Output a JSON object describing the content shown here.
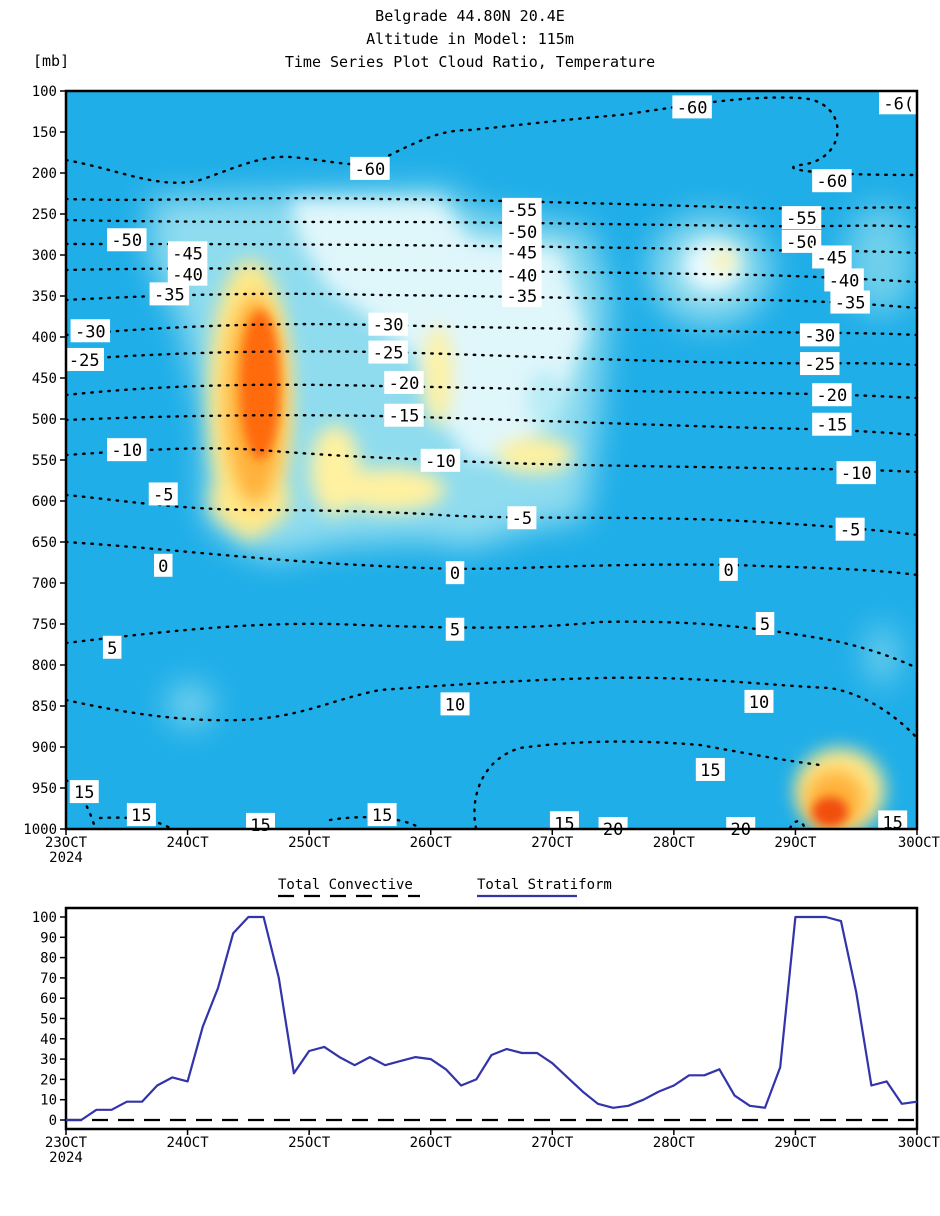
{
  "header": {
    "line1": "Belgrade  44.80N 20.4E",
    "line2": "Altitude in Model: 115m",
    "line3": "Time Series Plot Cloud Ratio, Temperature",
    "unit": "[mb]"
  },
  "chart_data": [
    {
      "type": "heatmap",
      "title": "Time Series Plot Cloud Ratio, Temperature",
      "ylabel": "[mb]",
      "y_ticks": [
        100,
        150,
        200,
        250,
        300,
        350,
        400,
        450,
        500,
        550,
        600,
        650,
        700,
        750,
        800,
        850,
        900,
        950,
        1000
      ],
      "ylim": [
        1000,
        100
      ],
      "x_ticks": [
        "23OCT",
        "24OCT",
        "25OCT",
        "26OCT",
        "27OCT",
        "28OCT",
        "29OCT",
        "30OCT"
      ],
      "x_year": "2024",
      "xlim": [
        23,
        30
      ],
      "contour_labels": [
        {
          "text": "-60",
          "day": 28.15,
          "p": 120
        },
        {
          "text": "-6(",
          "day": 29.85,
          "p": 115
        },
        {
          "text": "-60",
          "day": 25.5,
          "p": 195
        },
        {
          "text": "-60",
          "day": 29.3,
          "p": 210
        },
        {
          "text": "-55",
          "day": 26.75,
          "p": 245
        },
        {
          "text": "-55",
          "day": 29.05,
          "p": 255
        },
        {
          "text": "-50",
          "day": 26.75,
          "p": 272
        },
        {
          "text": "-50",
          "day": 29.05,
          "p": 284
        },
        {
          "text": "-50",
          "day": 23.5,
          "p": 282
        },
        {
          "text": "-45",
          "day": 26.75,
          "p": 297
        },
        {
          "text": "-45",
          "day": 29.3,
          "p": 303
        },
        {
          "text": "-45",
          "day": 24.0,
          "p": 298
        },
        {
          "text": "-40",
          "day": 26.75,
          "p": 325
        },
        {
          "text": "-40",
          "day": 29.4,
          "p": 331
        },
        {
          "text": "-40",
          "day": 24.0,
          "p": 324
        },
        {
          "text": "-35",
          "day": 26.75,
          "p": 350
        },
        {
          "text": "-35",
          "day": 29.45,
          "p": 358
        },
        {
          "text": "-35",
          "day": 23.85,
          "p": 348
        },
        {
          "text": "-30",
          "day": 25.65,
          "p": 385
        },
        {
          "text": "-30",
          "day": 29.2,
          "p": 398
        },
        {
          "text": "-30",
          "day": 23.2,
          "p": 393
        },
        {
          "text": "-25",
          "day": 25.65,
          "p": 419
        },
        {
          "text": "-25",
          "day": 29.2,
          "p": 433
        },
        {
          "text": "-25",
          "day": 23.15,
          "p": 428
        },
        {
          "text": "-20",
          "day": 25.78,
          "p": 456
        },
        {
          "text": "-20",
          "day": 29.3,
          "p": 471
        },
        {
          "text": "-15",
          "day": 25.78,
          "p": 496
        },
        {
          "text": "-15",
          "day": 29.3,
          "p": 507
        },
        {
          "text": "-10",
          "day": 23.5,
          "p": 538
        },
        {
          "text": "-10",
          "day": 26.08,
          "p": 551
        },
        {
          "text": "-10",
          "day": 29.5,
          "p": 566
        },
        {
          "text": "-5",
          "day": 23.8,
          "p": 592
        },
        {
          "text": "-5",
          "day": 26.75,
          "p": 621
        },
        {
          "text": "-5",
          "day": 29.45,
          "p": 635
        },
        {
          "text": "0",
          "day": 23.8,
          "p": 679
        },
        {
          "text": "0",
          "day": 26.2,
          "p": 688
        },
        {
          "text": "0",
          "day": 28.45,
          "p": 684
        },
        {
          "text": "5",
          "day": 23.38,
          "p": 779
        },
        {
          "text": "5",
          "day": 26.2,
          "p": 757
        },
        {
          "text": "5",
          "day": 28.75,
          "p": 750
        },
        {
          "text": "10",
          "day": 26.2,
          "p": 848
        },
        {
          "text": "10",
          "day": 28.7,
          "p": 845
        },
        {
          "text": "15",
          "day": 23.15,
          "p": 955
        },
        {
          "text": "15",
          "day": 23.62,
          "p": 983
        },
        {
          "text": "15",
          "day": 24.6,
          "p": 995
        },
        {
          "text": "15",
          "day": 25.6,
          "p": 983
        },
        {
          "text": "15",
          "day": 27.1,
          "p": 993
        },
        {
          "text": "15",
          "day": 28.3,
          "p": 928
        },
        {
          "text": "15",
          "day": 29.8,
          "p": 992
        },
        {
          "text": "20",
          "day": 27.5,
          "p": 1000
        },
        {
          "text": "20",
          "day": 28.55,
          "p": 1000
        }
      ]
    },
    {
      "type": "line",
      "title": "",
      "legend": [
        "Total Convective",
        "Total Stratiform"
      ],
      "y_ticks": [
        0,
        10,
        20,
        30,
        40,
        50,
        60,
        70,
        80,
        90,
        100
      ],
      "ylim": [
        0,
        105
      ],
      "x_ticks": [
        "23OCT",
        "24OCT",
        "25OCT",
        "26OCT",
        "27OCT",
        "28OCT",
        "29OCT",
        "30OCT"
      ],
      "x_year": "2024",
      "xlim": [
        23,
        30
      ],
      "series": [
        {
          "name": "Total Convective",
          "color": "#000000",
          "style": "dashed",
          "x": [
            23,
            30
          ],
          "values": [
            0,
            0
          ]
        },
        {
          "name": "Total Stratiform",
          "color": "#3333aa",
          "style": "solid",
          "x": [
            23.0,
            23.125,
            23.25,
            23.375,
            23.5,
            23.625,
            23.75,
            23.875,
            24.0,
            24.125,
            24.25,
            24.375,
            24.5,
            24.625,
            24.75,
            24.875,
            25.0,
            25.125,
            25.25,
            25.375,
            25.5,
            25.625,
            25.75,
            25.875,
            26.0,
            26.125,
            26.25,
            26.375,
            26.5,
            26.625,
            26.75,
            26.875,
            27.0,
            27.125,
            27.25,
            27.375,
            27.5,
            27.625,
            27.75,
            27.875,
            28.0,
            28.125,
            28.25,
            28.375,
            28.5,
            28.625,
            28.75,
            28.875,
            29.0,
            29.125,
            29.25,
            29.375,
            29.5,
            29.625,
            29.75,
            29.875,
            30.0
          ],
          "values": [
            0,
            0,
            5,
            5,
            9,
            9,
            17,
            21,
            19,
            46,
            65,
            92,
            100,
            100,
            70,
            23,
            34,
            36,
            31,
            27,
            31,
            27,
            29,
            31,
            30,
            25,
            17,
            20,
            32,
            35,
            33,
            33,
            28,
            21,
            14,
            8,
            6,
            7,
            10,
            14,
            17,
            22,
            22,
            25,
            12,
            7,
            6,
            26,
            100,
            100,
            100,
            98,
            63,
            17,
            19,
            8,
            9
          ]
        }
      ]
    }
  ]
}
